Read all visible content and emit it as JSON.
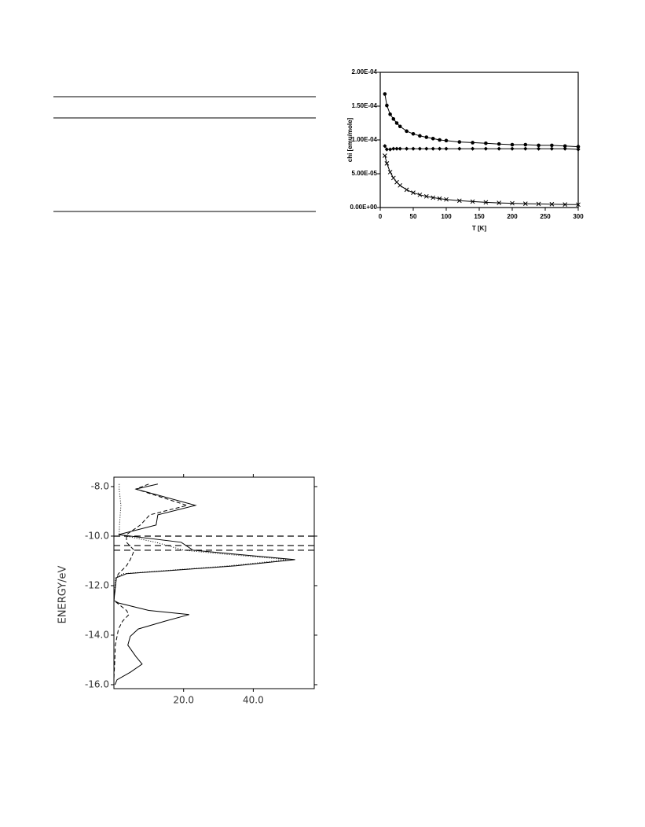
{
  "chart_data": [
    {
      "type": "line",
      "xlabel": "T [K]",
      "ylabel": "chi [emu/mole]",
      "x": [
        7,
        10,
        15,
        20,
        25,
        30,
        40,
        50,
        60,
        70,
        80,
        90,
        100,
        120,
        140,
        160,
        180,
        200,
        220,
        240,
        260,
        280,
        300
      ],
      "series": [
        {
          "color": "#000000",
          "marker": "circle",
          "values": [
            0.000168,
            0.000151,
            0.000138,
            0.000131,
            0.000125,
            0.00012,
            0.000113,
            0.000109,
            0.000106,
            0.000104,
            0.000102,
            0.0001,
            9.9e-05,
            9.7e-05,
            9.6e-05,
            9.5e-05,
            9.4e-05,
            9.3e-05,
            9.3e-05,
            9.2e-05,
            9.2e-05,
            9.1e-05,
            9e-05
          ]
        },
        {
          "color": "#000000",
          "marker": "diamond",
          "values": [
            9.1e-05,
            8.6e-05,
            8.6e-05,
            8.7e-05,
            8.7e-05,
            8.7e-05,
            8.7e-05,
            8.7e-05,
            8.7e-05,
            8.7e-05,
            8.7e-05,
            8.7e-05,
            8.7e-05,
            8.7e-05,
            8.7e-05,
            8.7e-05,
            8.7e-05,
            8.7e-05,
            8.7e-05,
            8.7e-05,
            8.7e-05,
            8.7e-05,
            8.6e-05
          ]
        },
        {
          "color": "#000000",
          "marker": "cross",
          "values": [
            7.67e-05,
            6.53e-05,
            5.24e-05,
            4.37e-05,
            3.75e-05,
            3.28e-05,
            2.63e-05,
            2.19e-05,
            1.88e-05,
            1.65e-05,
            1.46e-05,
            1.32e-05,
            1.2e-05,
            1.01e-05,
            8.8e-06,
            7.7e-06,
            6.9e-06,
            6.3e-06,
            5.7e-06,
            5.3e-06,
            4.9e-06,
            4.5e-06,
            4.3e-06
          ]
        }
      ],
      "xlim": [
        0,
        300
      ],
      "xticks": [
        0,
        50,
        100,
        150,
        200,
        250,
        300
      ],
      "ylim": [
        0,
        0.0002
      ],
      "yticks": [
        {
          "value": 0,
          "label": "0.00E+00"
        },
        {
          "value": 5e-05,
          "label": "5.00E-05"
        },
        {
          "value": 0.0001,
          "label": "1.00E-04"
        },
        {
          "value": 0.00015,
          "label": "1.50E-04"
        },
        {
          "value": 0.0002,
          "label": "2.00E-04"
        }
      ]
    },
    {
      "type": "line",
      "ylabel": "ENERGY/eV",
      "y": [
        -7.9,
        -8.1,
        -8.76,
        -9.14,
        -9.55,
        -9.94,
        -10.25,
        -10.57,
        -10.73,
        -10.95,
        -11.2,
        -11.52,
        -11.68,
        -12.6,
        -12.7,
        -13.0,
        -13.17,
        -13.43,
        -13.75,
        -14.05,
        -14.4,
        -14.86,
        -15.17,
        -15.5,
        -15.8,
        -16.0
      ],
      "series": [
        {
          "color": "#000000",
          "dash": "solid",
          "values": [
            12.6,
            6.3,
            23.4,
            12.6,
            12.1,
            1.3,
            19.3,
            22.7,
            35,
            52,
            35,
            3.6,
            0.7,
            0,
            1.3,
            10,
            21.6,
            14.8,
            7,
            4.7,
            4,
            6.3,
            8.1,
            4.7,
            0.9,
            0.3
          ]
        },
        {
          "color": "#000000",
          "dash": "dashed",
          "values": [
            10,
            6.3,
            21,
            10.3,
            7.6,
            3.6,
            3.6,
            5.8,
            5.4,
            4.7,
            3.6,
            1.3,
            0.7,
            0,
            0.9,
            3.6,
            4.3,
            2.5,
            1.3,
            0.9,
            0.4,
            0.3,
            0.2,
            0.1,
            0,
            0
          ]
        },
        {
          "color": "#000000",
          "dash": "dotted",
          "values": [
            1.5,
            1.5,
            2,
            1.8,
            1.6,
            1.5,
            12,
            20,
            32,
            50,
            33,
            2.5,
            0.5,
            0,
            0,
            0,
            0,
            0,
            0,
            0,
            0,
            0,
            0,
            0,
            0,
            0
          ]
        }
      ],
      "hlines": [
        -10.0,
        -10.38,
        -10.57
      ],
      "xlim": [
        0,
        57.5
      ],
      "xticks": [
        {
          "value": 20,
          "label": "20.0"
        },
        {
          "value": 40,
          "label": "40.0"
        }
      ],
      "ylim": [
        -16.16,
        -7.62
      ],
      "yticks": [
        {
          "value": -8,
          "label": "-8.0"
        },
        {
          "value": -10,
          "label": "-10.0"
        },
        {
          "value": -12,
          "label": "-12.0"
        },
        {
          "value": -14,
          "label": "-14.0"
        },
        {
          "value": -16,
          "label": "-16.0"
        }
      ]
    }
  ]
}
